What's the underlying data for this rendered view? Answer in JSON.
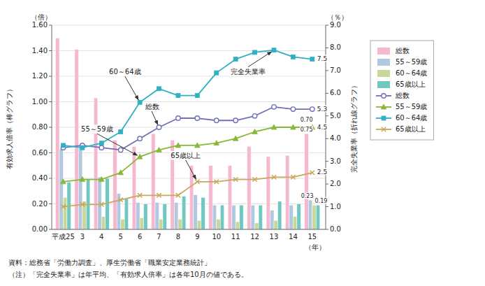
{
  "chart_data": {
    "type": "bar",
    "categories": [
      "平成25",
      "3",
      "4",
      "5",
      "6",
      "7",
      "8",
      "9",
      "10",
      "11",
      "12",
      "13",
      "14",
      "15"
    ],
    "x_label": "（年）",
    "y_label": "有効求人倍率（棒グラフ）",
    "y2_label": "完全失業率（折れ線グラフ）",
    "y_unit": "（倍）",
    "y2_unit": "（％）",
    "ylim": [
      0.0,
      1.6
    ],
    "yticks": [
      {
        "value": 0.0,
        "label": "0.00"
      },
      {
        "value": 0.2,
        "label": "0.20"
      },
      {
        "value": 0.4,
        "label": "0.40"
      },
      {
        "value": 0.6,
        "label": "0.60"
      },
      {
        "value": 0.8,
        "label": "0.80"
      },
      {
        "value": 1.0,
        "label": "1.00"
      },
      {
        "value": 1.2,
        "label": "1.20"
      },
      {
        "value": 1.4,
        "label": "1.40"
      },
      {
        "value": 1.6,
        "label": "1.60"
      }
    ],
    "y2lim": [
      0.0,
      9.0
    ],
    "y2ticks": [
      {
        "value": 0.0,
        "label": "0.0"
      },
      {
        "value": 1.0,
        "label": "1.0"
      },
      {
        "value": 2.0,
        "label": "2.0"
      },
      {
        "value": 3.0,
        "label": "3.0"
      },
      {
        "value": 4.0,
        "label": "4.0"
      },
      {
        "value": 5.0,
        "label": "5.0"
      },
      {
        "value": 6.0,
        "label": "6.0"
      },
      {
        "value": 7.0,
        "label": "7.0"
      },
      {
        "value": 8.0,
        "label": "8.0"
      },
      {
        "value": 9.0,
        "label": "9.0"
      }
    ],
    "grid": true,
    "legend": "right",
    "series": [
      {
        "name": "総数",
        "type": "bar",
        "color": "#f5b8cf",
        "values": [
          1.5,
          1.41,
          1.03,
          0.7,
          0.65,
          0.75,
          0.7,
          0.5,
          0.5,
          0.5,
          0.65,
          0.57,
          0.58,
          0.75
        ],
        "value_labels": [
          null,
          null,
          null,
          null,
          null,
          null,
          null,
          null,
          null,
          null,
          null,
          null,
          null,
          "0.75"
        ]
      },
      {
        "name": "55～59歳",
        "type": "bar",
        "color": "#b0c8e0",
        "values": [
          0.63,
          0.64,
          0.41,
          0.28,
          0.21,
          0.21,
          0.21,
          0.27,
          0.19,
          0.19,
          0.19,
          0.15,
          0.19,
          0.23
        ],
        "value_labels": [
          null,
          null,
          null,
          null,
          null,
          null,
          null,
          null,
          null,
          null,
          null,
          null,
          null,
          "0.23"
        ]
      },
      {
        "name": "60～64歳",
        "type": "bar",
        "color": "#c8d898",
        "values": [
          0.25,
          0.22,
          0.1,
          0.08,
          0.09,
          0.08,
          0.08,
          0.07,
          0.08,
          0.06,
          0.05,
          0.07,
          0.1,
          0.19
        ]
      },
      {
        "name": "65歳以上",
        "type": "bar",
        "color": "#70c8c0",
        "values": [
          0.37,
          0.39,
          0.4,
          0.24,
          0.2,
          0.2,
          0.26,
          0.25,
          0.19,
          0.19,
          0.19,
          0.22,
          0.2,
          0.19
        ],
        "value_labels": [
          null,
          null,
          null,
          null,
          null,
          null,
          null,
          null,
          null,
          null,
          null,
          null,
          null,
          "0.19"
        ]
      },
      {
        "name": "総数",
        "type": "line",
        "axis": "y2",
        "color": "#7070b8",
        "marker": "circle",
        "values": [
          3.6,
          3.7,
          3.6,
          3.5,
          4.0,
          4.5,
          4.9,
          4.9,
          4.8,
          4.8,
          5.0,
          5.4,
          5.3,
          5.3
        ],
        "value_labels": [
          null,
          null,
          null,
          null,
          null,
          null,
          null,
          null,
          null,
          null,
          null,
          null,
          null,
          "5.3"
        ]
      },
      {
        "name": "55～59歳",
        "type": "line",
        "axis": "y2",
        "color": "#88b838",
        "marker": "triangle",
        "values": [
          2.1,
          2.2,
          2.2,
          2.5,
          3.2,
          3.5,
          3.7,
          3.7,
          3.8,
          4.0,
          4.3,
          4.5,
          4.5,
          4.5
        ],
        "value_labels": [
          null,
          null,
          null,
          null,
          null,
          null,
          null,
          null,
          null,
          null,
          null,
          null,
          null,
          "4.5"
        ]
      },
      {
        "name": "60～64歳",
        "type": "line",
        "axis": "y2",
        "color": "#30b0c0",
        "marker": "square",
        "values": [
          3.7,
          3.6,
          3.8,
          4.3,
          5.6,
          6.2,
          5.9,
          5.9,
          6.9,
          7.5,
          7.8,
          7.9,
          7.6,
          7.5
        ],
        "value_labels": [
          null,
          null,
          null,
          null,
          null,
          null,
          null,
          null,
          null,
          null,
          null,
          null,
          null,
          "7.5"
        ]
      },
      {
        "name": "65歳以上",
        "type": "line",
        "axis": "y2",
        "color": "#c8a860",
        "marker": "x",
        "values": [
          1.0,
          1.1,
          1.1,
          1.3,
          1.5,
          1.5,
          1.5,
          2.1,
          2.1,
          2.2,
          2.2,
          2.3,
          2.3,
          2.5
        ],
        "value_labels": [
          null,
          null,
          null,
          null,
          null,
          null,
          null,
          null,
          null,
          null,
          null,
          null,
          null,
          "2.5"
        ]
      }
    ],
    "annotations": [
      "60～64歳",
      "55～59歳",
      "総数",
      "65歳以上",
      "完全失業率",
      "0.70"
    ],
    "notes": [
      "資料：総務省「労働力調査」、厚生労働省「職業安定業務統計」",
      "（注）「完全失業率」は年平均、「有効求人倍率」は各年10月の値である。"
    ]
  }
}
